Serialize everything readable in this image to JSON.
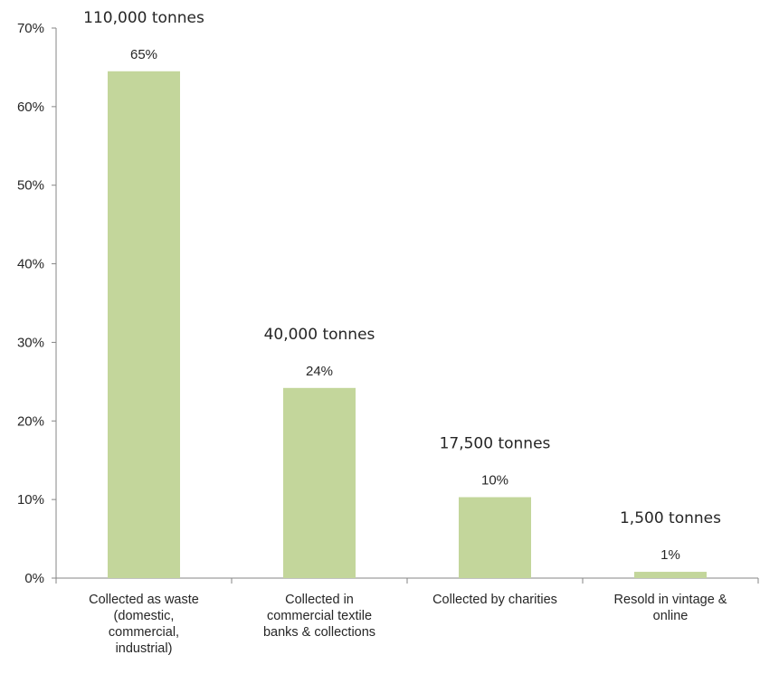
{
  "chart_data": {
    "type": "bar",
    "categories": [
      [
        "Collected as waste",
        "(domestic,",
        "commercial,",
        "industrial)"
      ],
      [
        "Collected in",
        "commercial textile",
        "banks & collections"
      ],
      [
        "Collected by charities"
      ],
      [
        "Resold in vintage &",
        "online"
      ]
    ],
    "values": [
      64.5,
      24.2,
      10.3,
      0.8
    ],
    "percent_labels": [
      "65%",
      "24%",
      "10%",
      "1%"
    ],
    "tonnage_labels": [
      "110,000 tonnes",
      "40,000 tonnes",
      "17,500 tonnes",
      "1,500 tonnes"
    ],
    "y_ticks": [
      "0%",
      "10%",
      "20%",
      "30%",
      "40%",
      "50%",
      "60%",
      "70%"
    ],
    "ylim": [
      0,
      70
    ],
    "grid": false,
    "legend": "none",
    "bar_color": "#c3d69b",
    "axis_color": "#868686"
  }
}
